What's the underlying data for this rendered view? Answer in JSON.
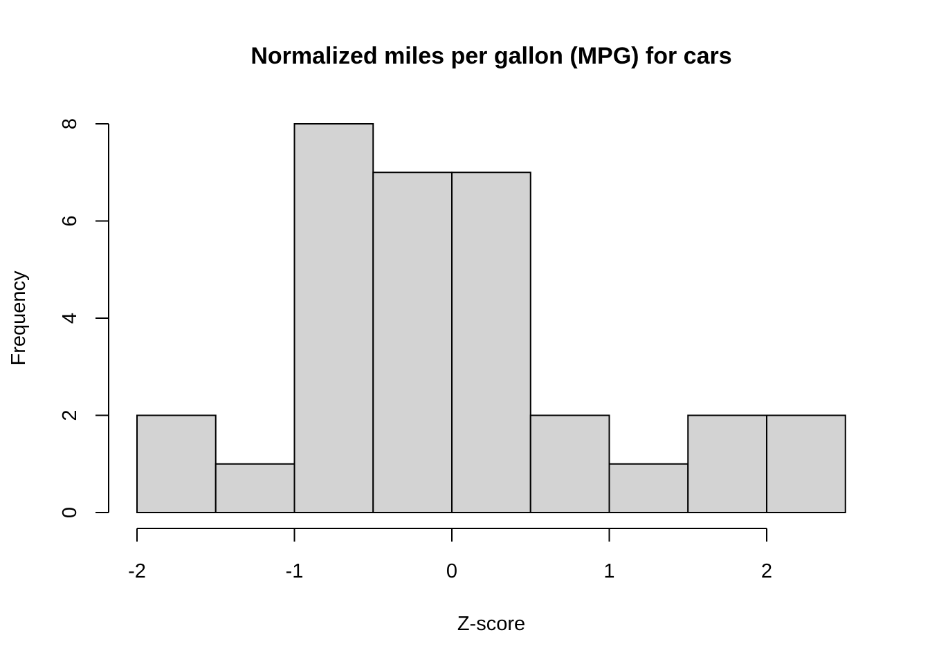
{
  "chart_data": {
    "type": "bar",
    "subtype": "histogram",
    "title": "Normalized miles per gallon (MPG) for cars",
    "xlabel": "Z-score",
    "ylabel": "Frequency",
    "bins": [
      {
        "start": -2.0,
        "end": -1.5,
        "count": 2
      },
      {
        "start": -1.5,
        "end": -1.0,
        "count": 1
      },
      {
        "start": -1.0,
        "end": -0.5,
        "count": 8
      },
      {
        "start": -0.5,
        "end": 0.0,
        "count": 7
      },
      {
        "start": 0.0,
        "end": 0.5,
        "count": 7
      },
      {
        "start": 0.5,
        "end": 1.0,
        "count": 2
      },
      {
        "start": 1.0,
        "end": 1.5,
        "count": 1
      },
      {
        "start": 1.5,
        "end": 2.0,
        "count": 2
      },
      {
        "start": 2.0,
        "end": 2.5,
        "count": 2
      }
    ],
    "xlim": [
      -2,
      2.5
    ],
    "ylim": [
      0,
      8
    ],
    "xticks": [
      -2,
      -1,
      0,
      1,
      2
    ],
    "xtick_labels": [
      "-2",
      "-1",
      "0",
      "1",
      "2"
    ],
    "yticks": [
      0,
      2,
      4,
      6,
      8
    ],
    "ytick_labels": [
      "0",
      "2",
      "4",
      "6",
      "8"
    ],
    "bar_color": "#d3d3d3",
    "edge_color": "#000000",
    "grid": false,
    "legend": false
  }
}
